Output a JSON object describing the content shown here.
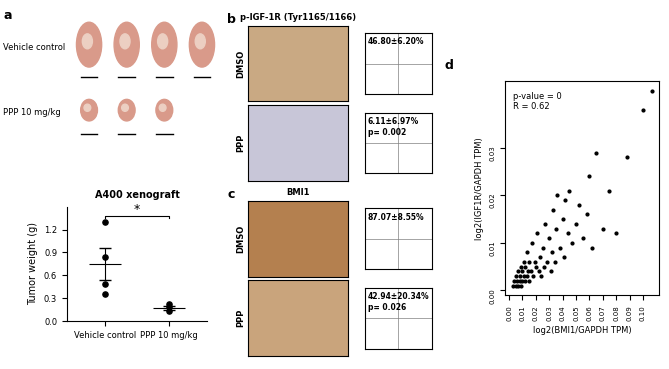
{
  "panel_labels": [
    "a",
    "b",
    "c",
    "d"
  ],
  "photos": {
    "rows": [
      {
        "label": "Vehicle control",
        "count": 4
      },
      {
        "label": "PPP 10 mg/kg",
        "count": 3
      }
    ]
  },
  "ihc": {
    "row_labels": [
      "DMSO",
      "PPP"
    ],
    "stains": [
      {
        "title": "p-IGF-1R (Tyr1165/1166)",
        "quant": [
          "46.80±6.20%",
          "6.11±6.97%"
        ],
        "p": [
          null,
          "p= 0.002"
        ],
        "colors": [
          "#c9a983",
          "#c8c6d8"
        ]
      },
      {
        "title": "BMI1",
        "quant": [
          "87.07±8.55%",
          "42.94±20.34%"
        ],
        "p": [
          null,
          "p= 0.026"
        ],
        "colors": [
          "#b4804f",
          "#c9a47c"
        ]
      }
    ]
  },
  "chart_data": [
    {
      "type": "dot",
      "title": "A400 xenograft",
      "y_label": "Tumor weight (g)",
      "categories": [
        "Vehicle control",
        "PPP 10 mg/kg"
      ],
      "points": [
        [
          1.3,
          0.84,
          0.48,
          0.36
        ],
        [
          0.22,
          0.18,
          0.13
        ]
      ],
      "mean": [
        0.745,
        0.177
      ],
      "error": [
        0.211,
        0.026
      ],
      "annotation": "*",
      "color": "#000000",
      "ylim": [
        0,
        1.5
      ],
      "yticks": [
        {
          "value": 0,
          "label": "0.0"
        },
        {
          "value": 0.3,
          "label": "0.3"
        },
        {
          "value": 0.6,
          "label": "0.6"
        },
        {
          "value": 0.9,
          "label": "0.9"
        },
        {
          "value": 1.2,
          "label": "1.2"
        }
      ]
    },
    {
      "type": "scatter",
      "x_label": "log2(BMI1/GAPDH TPM)",
      "y_label": "log2(IGF1R/GAPDH TPM)",
      "annotations": [
        "p-value = 0",
        "R = 0.62"
      ],
      "color": "#000000",
      "marker": "o",
      "x": [
        0.003,
        0.004,
        0.005,
        0.005,
        0.006,
        0.007,
        0.007,
        0.008,
        0.008,
        0.009,
        0.009,
        0.01,
        0.01,
        0.011,
        0.011,
        0.012,
        0.012,
        0.013,
        0.013,
        0.014,
        0.015,
        0.015,
        0.016,
        0.017,
        0.018,
        0.019,
        0.02,
        0.021,
        0.022,
        0.023,
        0.024,
        0.025,
        0.026,
        0.027,
        0.028,
        0.03,
        0.031,
        0.032,
        0.033,
        0.034,
        0.035,
        0.036,
        0.038,
        0.04,
        0.041,
        0.042,
        0.044,
        0.045,
        0.047,
        0.05,
        0.052,
        0.055,
        0.058,
        0.06,
        0.062,
        0.065,
        0.07,
        0.075,
        0.08,
        0.088,
        0.1,
        0.107
      ],
      "y": [
        0.001,
        0.002,
        0.001,
        0.003,
        0.002,
        0.001,
        0.004,
        0.002,
        0.003,
        0.001,
        0.005,
        0.002,
        0.004,
        0.003,
        0.006,
        0.002,
        0.005,
        0.003,
        0.008,
        0.004,
        0.002,
        0.006,
        0.004,
        0.01,
        0.003,
        0.006,
        0.005,
        0.012,
        0.004,
        0.007,
        0.003,
        0.009,
        0.005,
        0.014,
        0.006,
        0.011,
        0.004,
        0.008,
        0.017,
        0.006,
        0.013,
        0.02,
        0.009,
        0.015,
        0.007,
        0.019,
        0.012,
        0.021,
        0.01,
        0.014,
        0.018,
        0.011,
        0.016,
        0.024,
        0.009,
        0.029,
        0.013,
        0.021,
        0.012,
        0.028,
        0.038,
        0.042
      ],
      "xlim": [
        -0.003,
        0.112
      ],
      "ylim": [
        -0.001,
        0.044
      ],
      "xticks": [
        {
          "value": 0,
          "label": "0.00"
        },
        0.01,
        0.02,
        0.03,
        0.04,
        0.05,
        0.06,
        0.07,
        0.08,
        0.09,
        {
          "value": 0.1,
          "label": "0.10"
        }
      ],
      "yticks": [
        {
          "value": 0,
          "label": "0.00"
        },
        0.01,
        0.02,
        0.03
      ]
    }
  ]
}
